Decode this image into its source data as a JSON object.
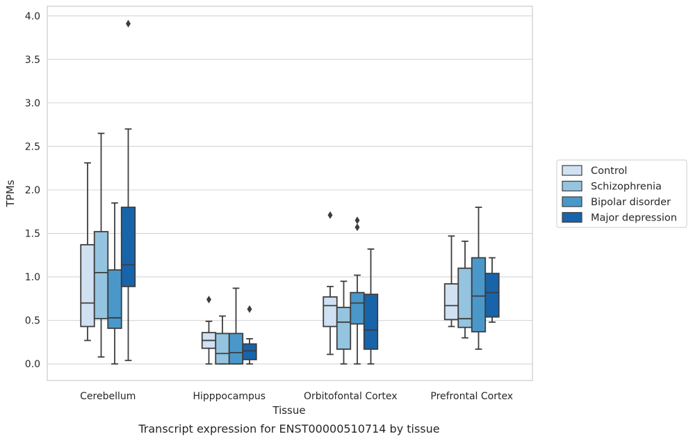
{
  "chart_data": {
    "type": "box",
    "title": "",
    "caption": "Transcript expression for ENST00000510714 by tissue",
    "xlabel": "Tissue",
    "ylabel": "TPMs",
    "ylim": [
      -0.19,
      4.11
    ],
    "yticks": [
      "0.0",
      "0.5",
      "1.0",
      "1.5",
      "2.0",
      "2.5",
      "3.0",
      "3.5",
      "4.0"
    ],
    "grid": "horizontal",
    "legend_position": "right",
    "categories": [
      "Cerebellum",
      "Hipppocampus",
      "Orbitofontal Cortex",
      "Prefrontal Cortex"
    ],
    "series": [
      {
        "name": "Control",
        "color": "#d0e1f2",
        "boxes": [
          {
            "whislo": 0.27,
            "q1": 0.43,
            "med": 0.7,
            "q3": 1.37,
            "whishi": 2.31,
            "fliers": []
          },
          {
            "whislo": 0.0,
            "q1": 0.18,
            "med": 0.27,
            "q3": 0.36,
            "whishi": 0.49,
            "fliers": [
              0.74
            ]
          },
          {
            "whislo": 0.11,
            "q1": 0.43,
            "med": 0.67,
            "q3": 0.77,
            "whishi": 0.89,
            "fliers": [
              1.71
            ]
          },
          {
            "whislo": 0.43,
            "q1": 0.51,
            "med": 0.67,
            "q3": 0.92,
            "whishi": 1.47,
            "fliers": []
          }
        ]
      },
      {
        "name": "Schizophrenia",
        "color": "#94c4df",
        "boxes": [
          {
            "whislo": 0.08,
            "q1": 0.52,
            "med": 1.05,
            "q3": 1.52,
            "whishi": 2.65,
            "fliers": []
          },
          {
            "whislo": 0.0,
            "q1": 0.0,
            "med": 0.12,
            "q3": 0.35,
            "whishi": 0.55,
            "fliers": []
          },
          {
            "whislo": 0.0,
            "q1": 0.17,
            "med": 0.48,
            "q3": 0.65,
            "whishi": 0.95,
            "fliers": []
          },
          {
            "whislo": 0.3,
            "q1": 0.42,
            "med": 0.52,
            "q3": 1.1,
            "whishi": 1.41,
            "fliers": []
          }
        ]
      },
      {
        "name": "Bipolar disorder",
        "color": "#4a98c9",
        "boxes": [
          {
            "whislo": 0.0,
            "q1": 0.41,
            "med": 0.53,
            "q3": 1.08,
            "whishi": 1.85,
            "fliers": []
          },
          {
            "whislo": 0.0,
            "q1": 0.0,
            "med": 0.13,
            "q3": 0.35,
            "whishi": 0.87,
            "fliers": []
          },
          {
            "whislo": 0.0,
            "q1": 0.46,
            "med": 0.7,
            "q3": 0.82,
            "whishi": 1.02,
            "fliers": [
              1.57,
              1.65
            ]
          },
          {
            "whislo": 0.17,
            "q1": 0.37,
            "med": 0.78,
            "q3": 1.22,
            "whishi": 1.8,
            "fliers": []
          }
        ]
      },
      {
        "name": "Major depression",
        "color": "#1764ab",
        "boxes": [
          {
            "whislo": 0.04,
            "q1": 0.89,
            "med": 1.14,
            "q3": 1.8,
            "whishi": 2.7,
            "fliers": [
              3.91
            ]
          },
          {
            "whislo": 0.0,
            "q1": 0.05,
            "med": 0.15,
            "q3": 0.23,
            "whishi": 0.29,
            "fliers": [
              0.63
            ]
          },
          {
            "whislo": 0.0,
            "q1": 0.17,
            "med": 0.39,
            "q3": 0.8,
            "whishi": 1.32,
            "fliers": []
          },
          {
            "whislo": 0.48,
            "q1": 0.54,
            "med": 0.82,
            "q3": 1.04,
            "whishi": 1.22,
            "fliers": []
          }
        ]
      }
    ]
  }
}
